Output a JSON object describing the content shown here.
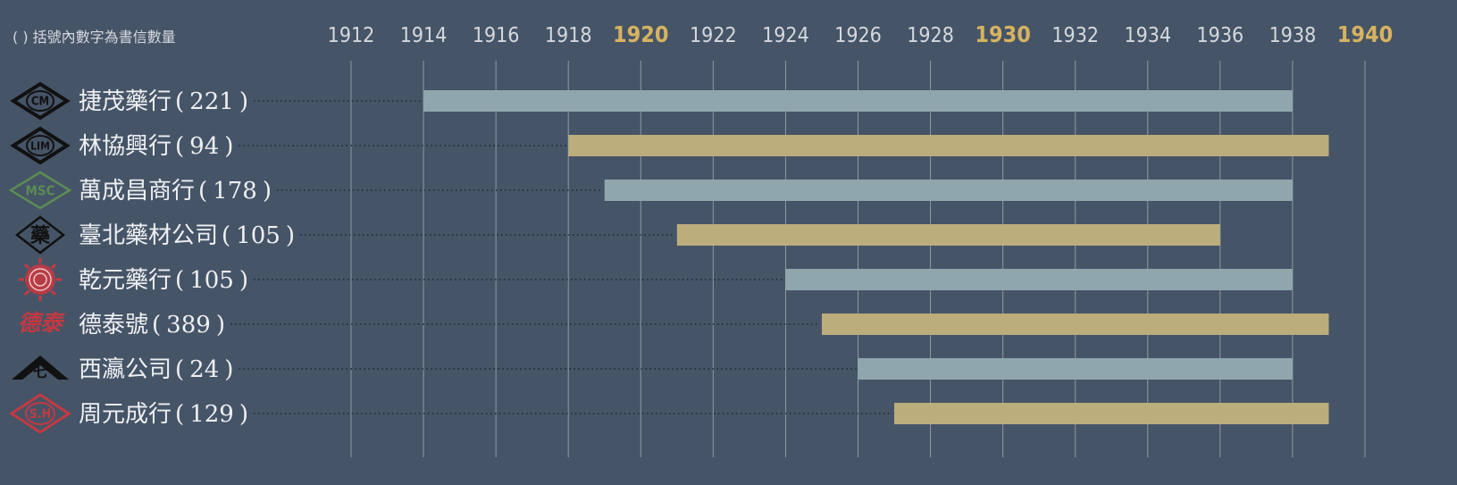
{
  "note": "( ) 括號內數字為書信數量",
  "colors": {
    "background": "#465467",
    "bar_gray": "#8fa6ad",
    "bar_gold": "#bcad7d",
    "year_highlight": "#d6b360",
    "year_normal": "#d5d9df",
    "gridline": "#a7b0bc",
    "label": "#eef0f3",
    "logo_black": "#111111",
    "logo_green": "#5b8c54",
    "logo_red": "#c23a43"
  },
  "chart_data": {
    "type": "bar",
    "orientation": "horizontal",
    "x_ticks": [
      1912,
      1914,
      1916,
      1918,
      1920,
      1922,
      1924,
      1926,
      1928,
      1930,
      1932,
      1934,
      1936,
      1938,
      1940
    ],
    "highlighted_ticks": [
      1920,
      1930,
      1940
    ],
    "xlim": [
      1912,
      1940
    ],
    "grid": true,
    "series": [
      {
        "name": "捷茂藥行",
        "count": 221,
        "start": 1914,
        "end": 1938,
        "color": "#8fa6ad",
        "logo": "cm-diamond-logo",
        "logo_color": "#111111"
      },
      {
        "name": "林協興行",
        "count": 94,
        "start": 1918,
        "end": 1939,
        "color": "#bcad7d",
        "logo": "lim-diamond-logo",
        "logo_color": "#111111"
      },
      {
        "name": "萬成昌商行",
        "count": 178,
        "start": 1919,
        "end": 1938,
        "color": "#8fa6ad",
        "logo": "msc-diamond-logo",
        "logo_color": "#5b8c54"
      },
      {
        "name": "臺北藥材公司",
        "count": 105,
        "start": 1921,
        "end": 1936,
        "color": "#bcad7d",
        "logo": "medicine-diamond-logo",
        "logo_color": "#111111"
      },
      {
        "name": "乾元藥行",
        "count": 105,
        "start": 1924,
        "end": 1938,
        "color": "#8fa6ad",
        "logo": "red-seal-logo",
        "logo_color": "#c23a43"
      },
      {
        "name": "德泰號",
        "count": 389,
        "start": 1925,
        "end": 1939,
        "color": "#bcad7d",
        "logo": "calligraphy-logo",
        "logo_color": "#c23a43"
      },
      {
        "name": "西瀛公司",
        "count": 24,
        "start": 1926,
        "end": 1938,
        "color": "#8fa6ad",
        "logo": "mountain-logo",
        "logo_color": "#111111"
      },
      {
        "name": "周元成行",
        "count": 129,
        "start": 1927,
        "end": 1939,
        "color": "#bcad7d",
        "logo": "sh-diamond-logo",
        "logo_color": "#c23a43"
      }
    ],
    "logo_text": {
      "cm": "CM",
      "lim": "LIM",
      "msc": "MSC",
      "medicine": "藥",
      "calligraphy": "德泰",
      "mountain": "七",
      "sh": "S.H"
    }
  }
}
